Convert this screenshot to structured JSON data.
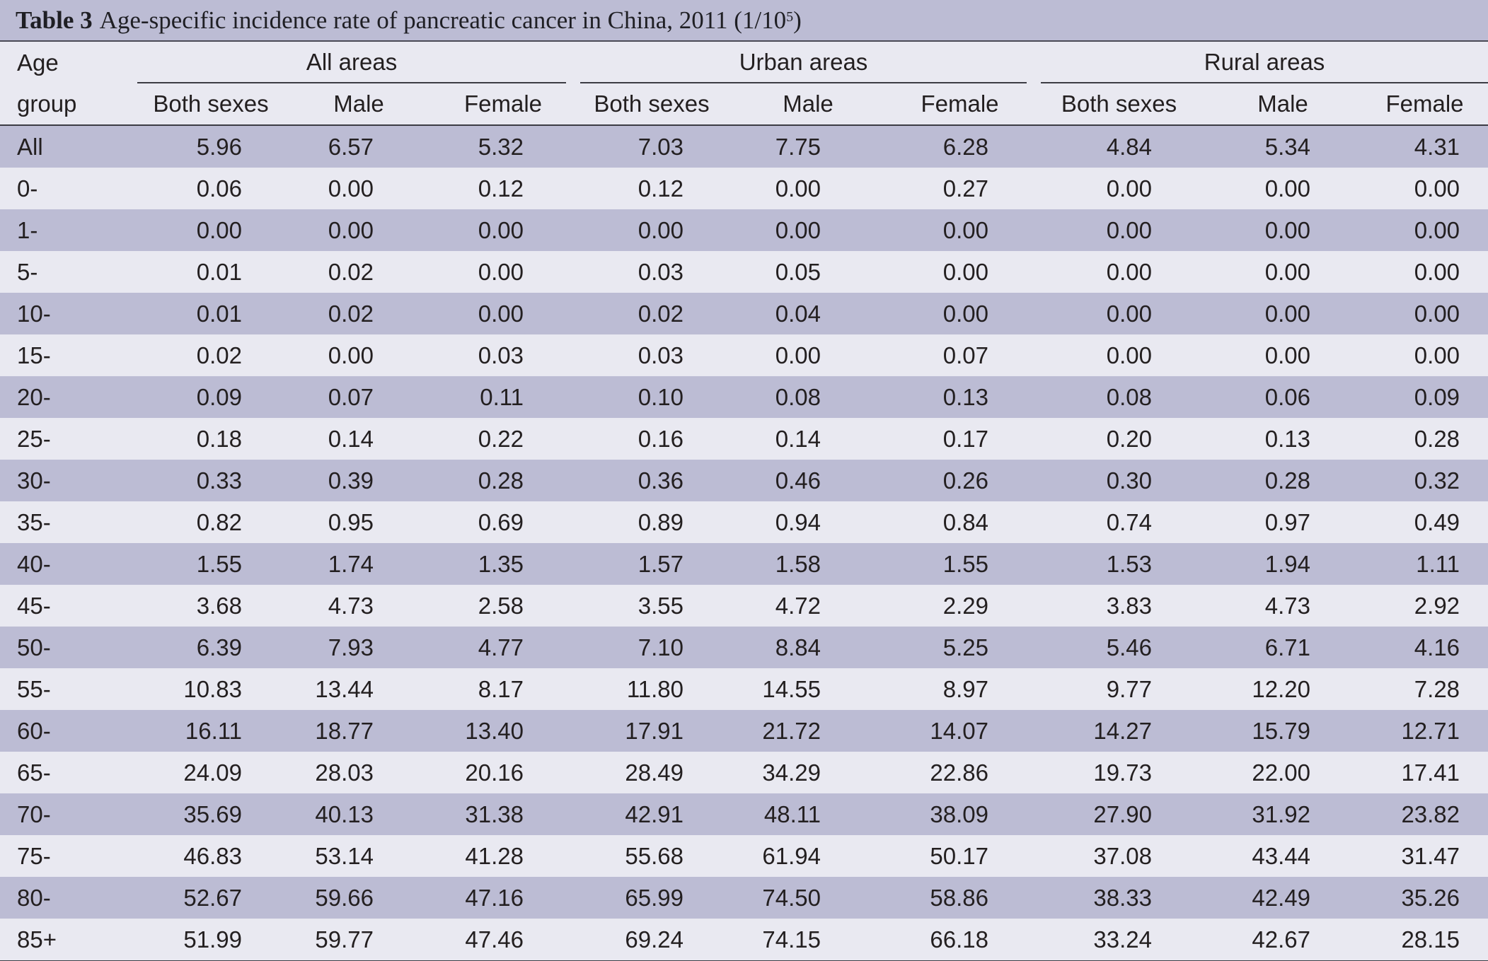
{
  "caption": {
    "label": "Table 3",
    "text": "Age-specific incidence rate of pancreatic cancer in China, 2011 (1/10",
    "sup": "5",
    "close": ")"
  },
  "header": {
    "age_line1": "Age",
    "age_line2": "group",
    "groups": [
      "All areas",
      "Urban areas",
      "Rural areas"
    ],
    "subcols": [
      "Both sexes",
      "Male",
      "Female",
      "Both sexes",
      "Male",
      "Female",
      "Both sexes",
      "Male",
      "Female"
    ]
  },
  "rows": [
    {
      "age": "All",
      "values": [
        "5.96",
        "6.57",
        "5.32",
        "7.03",
        "7.75",
        "6.28",
        "4.84",
        "5.34",
        "4.31"
      ]
    },
    {
      "age": "0-",
      "values": [
        "0.06",
        "0.00",
        "0.12",
        "0.12",
        "0.00",
        "0.27",
        "0.00",
        "0.00",
        "0.00"
      ]
    },
    {
      "age": "1-",
      "values": [
        "0.00",
        "0.00",
        "0.00",
        "0.00",
        "0.00",
        "0.00",
        "0.00",
        "0.00",
        "0.00"
      ]
    },
    {
      "age": "5-",
      "values": [
        "0.01",
        "0.02",
        "0.00",
        "0.03",
        "0.05",
        "0.00",
        "0.00",
        "0.00",
        "0.00"
      ]
    },
    {
      "age": "10-",
      "values": [
        "0.01",
        "0.02",
        "0.00",
        "0.02",
        "0.04",
        "0.00",
        "0.00",
        "0.00",
        "0.00"
      ]
    },
    {
      "age": "15-",
      "values": [
        "0.02",
        "0.00",
        "0.03",
        "0.03",
        "0.00",
        "0.07",
        "0.00",
        "0.00",
        "0.00"
      ]
    },
    {
      "age": "20-",
      "values": [
        "0.09",
        "0.07",
        "0.11",
        "0.10",
        "0.08",
        "0.13",
        "0.08",
        "0.06",
        "0.09"
      ]
    },
    {
      "age": "25-",
      "values": [
        "0.18",
        "0.14",
        "0.22",
        "0.16",
        "0.14",
        "0.17",
        "0.20",
        "0.13",
        "0.28"
      ]
    },
    {
      "age": "30-",
      "values": [
        "0.33",
        "0.39",
        "0.28",
        "0.36",
        "0.46",
        "0.26",
        "0.30",
        "0.28",
        "0.32"
      ]
    },
    {
      "age": "35-",
      "values": [
        "0.82",
        "0.95",
        "0.69",
        "0.89",
        "0.94",
        "0.84",
        "0.74",
        "0.97",
        "0.49"
      ]
    },
    {
      "age": "40-",
      "values": [
        "1.55",
        "1.74",
        "1.35",
        "1.57",
        "1.58",
        "1.55",
        "1.53",
        "1.94",
        "1.11"
      ]
    },
    {
      "age": "45-",
      "values": [
        "3.68",
        "4.73",
        "2.58",
        "3.55",
        "4.72",
        "2.29",
        "3.83",
        "4.73",
        "2.92"
      ]
    },
    {
      "age": "50-",
      "values": [
        "6.39",
        "7.93",
        "4.77",
        "7.10",
        "8.84",
        "5.25",
        "5.46",
        "6.71",
        "4.16"
      ]
    },
    {
      "age": "55-",
      "values": [
        "10.83",
        "13.44",
        "8.17",
        "11.80",
        "14.55",
        "8.97",
        "9.77",
        "12.20",
        "7.28"
      ]
    },
    {
      "age": "60-",
      "values": [
        "16.11",
        "18.77",
        "13.40",
        "17.91",
        "21.72",
        "14.07",
        "14.27",
        "15.79",
        "12.71"
      ]
    },
    {
      "age": "65-",
      "values": [
        "24.09",
        "28.03",
        "20.16",
        "28.49",
        "34.29",
        "22.86",
        "19.73",
        "22.00",
        "17.41"
      ]
    },
    {
      "age": "70-",
      "values": [
        "35.69",
        "40.13",
        "31.38",
        "42.91",
        "48.11",
        "38.09",
        "27.90",
        "31.92",
        "23.82"
      ]
    },
    {
      "age": "75-",
      "values": [
        "46.83",
        "53.14",
        "41.28",
        "55.68",
        "61.94",
        "50.17",
        "37.08",
        "43.44",
        "31.47"
      ]
    },
    {
      "age": "80-",
      "values": [
        "52.67",
        "59.66",
        "47.16",
        "65.99",
        "74.50",
        "58.86",
        "38.33",
        "42.49",
        "35.26"
      ]
    },
    {
      "age": "85+",
      "values": [
        "51.99",
        "59.77",
        "47.46",
        "69.24",
        "74.15",
        "66.18",
        "33.24",
        "42.67",
        "28.15"
      ]
    }
  ],
  "colors": {
    "band_dark": "#bcbcd4",
    "band_light": "#e9e9f1",
    "rule": "#3c3c44"
  }
}
